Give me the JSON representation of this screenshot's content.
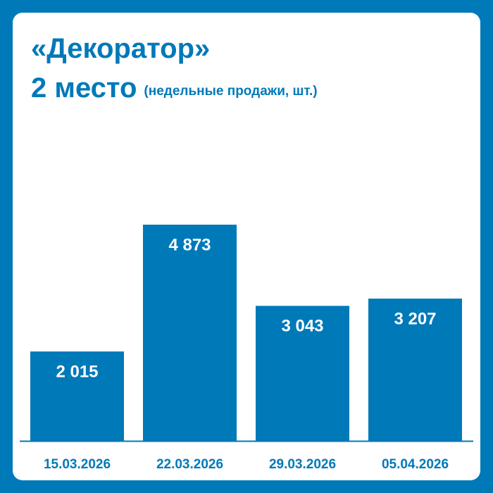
{
  "header": {
    "title": "«Декоратор»",
    "rank": "2 место",
    "unit_note": "(недельные продажи, шт.)"
  },
  "colors": {
    "background": "#0079b9",
    "card": "#ffffff",
    "accent": "#0079b9",
    "value_text": "#ffffff"
  },
  "chart_data": {
    "type": "bar",
    "categories": [
      "15.03.2026",
      "22.03.2026",
      "29.03.2026",
      "05.04.2026"
    ],
    "values": [
      2015,
      4873,
      3043,
      3207
    ],
    "value_labels": [
      "2 015",
      "4 873",
      "3 043",
      "3 207"
    ],
    "title": "«Декоратор»",
    "subtitle": "2 место (недельные продажи, шт.)",
    "xlabel": "",
    "ylabel": "",
    "ylim": [
      0,
      4873
    ],
    "grid": false,
    "legend": "none"
  }
}
